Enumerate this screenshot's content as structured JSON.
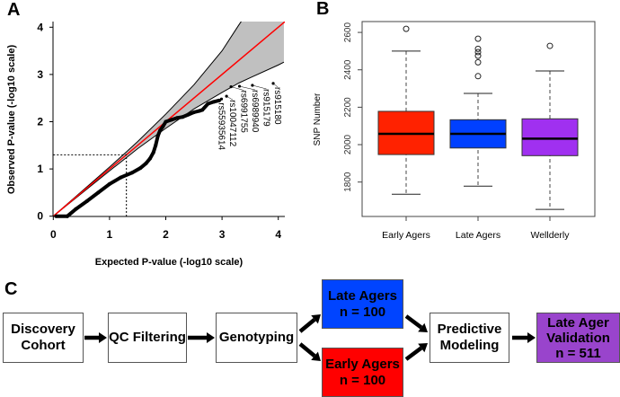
{
  "panels": {
    "a": "A",
    "b": "B",
    "c": "C"
  },
  "chart_data": [
    {
      "type": "scatter",
      "title": "",
      "xlabel": "Expected P-value (-log10 scale)",
      "ylabel": "Observed P-value (-log10 scale)",
      "xlim": [
        0,
        4.1
      ],
      "ylim": [
        0,
        4.1
      ],
      "xticks": [
        "0",
        "1",
        "2",
        "3",
        "4"
      ],
      "yticks": [
        "0",
        "1",
        "2",
        "3",
        "4"
      ],
      "reference_line": {
        "color": "#ff0000",
        "slope": 1
      },
      "threshold": 1.3,
      "confidence_band": {
        "x": [
          0,
          0.5,
          1,
          1.3,
          1.5,
          2,
          2.5,
          3,
          3.3,
          3.5,
          4,
          4.1
        ],
        "upper": [
          0,
          0.52,
          1.04,
          1.36,
          1.58,
          2.16,
          2.78,
          3.5,
          4.05,
          4.4,
          5.2,
          5.4
        ],
        "lower": [
          0,
          0.48,
          0.96,
          1.24,
          1.43,
          1.86,
          2.27,
          2.62,
          2.82,
          2.93,
          3.2,
          3.26
        ],
        "color": "#c0c0c0"
      },
      "series": [
        {
          "x": [
            0.05,
            0.25,
            0.4,
            0.6,
            0.8,
            1.0,
            1.2,
            1.4,
            1.55,
            1.65,
            1.72,
            1.78,
            1.82,
            1.86,
            1.9,
            1.95,
            2.0,
            2.1,
            2.2,
            2.3,
            2.4,
            2.5,
            2.6,
            2.65,
            2.75,
            2.85,
            2.95
          ],
          "y": [
            0,
            0,
            0.15,
            0.32,
            0.5,
            0.68,
            0.82,
            0.92,
            1.02,
            1.12,
            1.22,
            1.35,
            1.5,
            1.7,
            1.82,
            1.9,
            2.0,
            2.04,
            2.08,
            2.1,
            2.15,
            2.2,
            2.23,
            2.25,
            2.38,
            2.42,
            2.45
          ]
        }
      ],
      "annotated_points": [
        {
          "label": "rs55935614",
          "x": 2.99,
          "y": 2.48
        },
        {
          "label": "rs10047112",
          "x": 3.08,
          "y": 2.54
        },
        {
          "label": "rs6991755",
          "x": 3.16,
          "y": 2.74
        },
        {
          "label": "rs6989940",
          "x": 3.31,
          "y": 2.75
        },
        {
          "label": "rs915179",
          "x": 3.54,
          "y": 2.77
        },
        {
          "label": "rs915180",
          "x": 3.91,
          "y": 2.81
        }
      ]
    },
    {
      "type": "box",
      "title": "",
      "xlabel": "",
      "ylabel": "SNP Number",
      "ylim": [
        1616,
        2658
      ],
      "yticks": [
        "1800",
        "2000",
        "2200",
        "2400",
        "2600"
      ],
      "categories": [
        "Early Agers",
        "Late Agers",
        "Wellderly"
      ],
      "boxes": [
        {
          "color": "#ff2200",
          "whisker_low": 1735,
          "q1": 1947,
          "median": 2058,
          "q3": 2178,
          "whisker_high": 2500,
          "outliers": [
            2619
          ]
        },
        {
          "color": "#0040ff",
          "whisker_low": 1778,
          "q1": 1982,
          "median": 2058,
          "q3": 2133,
          "whisker_high": 2274,
          "outliers": [
            2566,
            2512,
            2495,
            2475,
            2440,
            2366
          ]
        },
        {
          "color": "#a030f0",
          "whisker_low": 1654,
          "q1": 1941,
          "median": 2032,
          "q3": 2138,
          "whisker_high": 2394,
          "outliers": [
            2528
          ]
        }
      ]
    }
  ],
  "flow": {
    "discovery": "Discovery\nCohort",
    "qc": "QC Filtering",
    "genotyping": "Genotyping",
    "late": "Late Agers\nn = 100",
    "early": "Early Agers\nn = 100",
    "modeling": "Predictive\nModeling",
    "validation": "Late Ager\nValidation\nn = 511",
    "colors": {
      "late": "#0044ff",
      "early": "#ff0000",
      "validation": "#9944cc"
    }
  }
}
